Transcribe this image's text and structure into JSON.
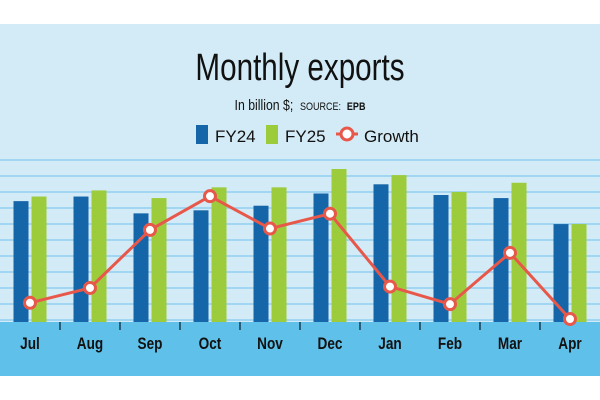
{
  "colors": {
    "background": "#d3ebf6",
    "axis_band": "#5fc1ea",
    "gridline": "#8fd0ef",
    "fy24": "#1565a9",
    "fy25": "#9ccb3b",
    "growth": "#e8584a",
    "text": "#111111"
  },
  "chart_data": {
    "type": "bar",
    "title": "Monthly exports",
    "subtitle_main": "In billion $;",
    "subtitle_source": "SOURCE:",
    "subtitle_source_name": "EPB",
    "categories": [
      "Jul",
      "Aug",
      "Sep",
      "Oct",
      "Nov",
      "Dec",
      "Jan",
      "Feb",
      "Mar",
      "Apr"
    ],
    "series": [
      {
        "name": "FY24",
        "type": "bar",
        "color": "#1565a9",
        "values": [
          0.79,
          0.82,
          0.71,
          0.73,
          0.76,
          0.84,
          0.9,
          0.83,
          0.81,
          0.64
        ]
      },
      {
        "name": "FY25",
        "type": "bar",
        "color": "#9ccb3b",
        "values": [
          0.82,
          0.86,
          0.81,
          0.88,
          0.88,
          1.0,
          0.96,
          0.85,
          0.91,
          0.64
        ]
      },
      {
        "name": "Growth",
        "type": "line",
        "color": "#e8584a",
        "values": [
          0.12,
          0.23,
          0.66,
          0.91,
          0.67,
          0.78,
          0.24,
          0.11,
          0.49,
          0.0
        ]
      }
    ],
    "legend_position": "top-center",
    "grid": true,
    "ylim": [
      0,
      1
    ]
  }
}
